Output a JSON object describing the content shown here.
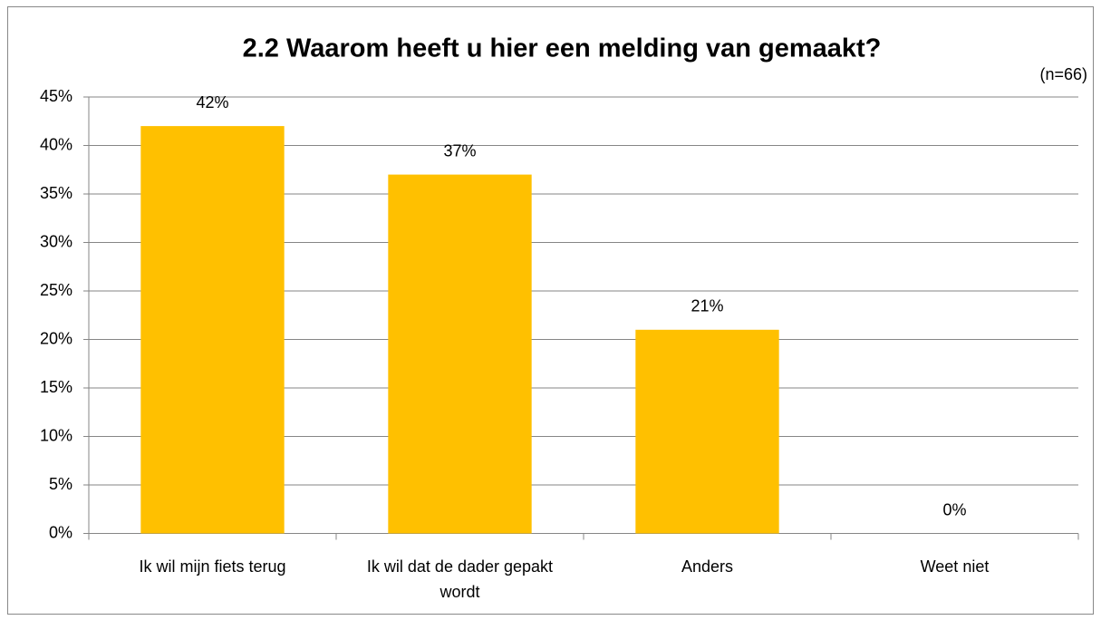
{
  "chart_data": {
    "type": "bar",
    "title": "2.2 Waarom heeft u hier een melding van gemaakt?",
    "subtitle": "(n=66)",
    "categories": [
      "Ik wil mijn fiets terug",
      "Ik wil dat de dader gepakt wordt",
      "Anders",
      "Weet niet"
    ],
    "values": [
      42,
      37,
      21,
      0
    ],
    "value_labels": [
      "42%",
      "37%",
      "21%",
      "0%"
    ],
    "color": "#ffc000",
    "ylim": [
      0,
      45
    ],
    "yticks": [
      {
        "value": 0,
        "label": "0%"
      },
      {
        "value": 5,
        "label": "5%"
      },
      {
        "value": 10,
        "label": "10%"
      },
      {
        "value": 15,
        "label": "15%"
      },
      {
        "value": 20,
        "label": "20%"
      },
      {
        "value": 25,
        "label": "25%"
      },
      {
        "value": 30,
        "label": "30%"
      },
      {
        "value": 35,
        "label": "35%"
      },
      {
        "value": 40,
        "label": "40%"
      },
      {
        "value": 45,
        "label": "45%"
      }
    ],
    "grid": true
  }
}
